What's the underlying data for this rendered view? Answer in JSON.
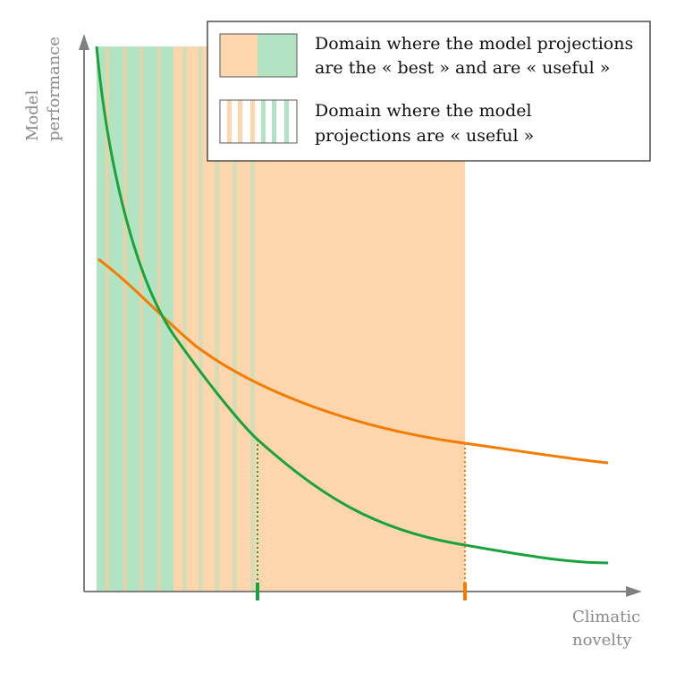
{
  "axes": {
    "y_label_lines": [
      "Model",
      "performance"
    ],
    "x_label_lines": [
      "Climatic",
      "novelty"
    ]
  },
  "legend": {
    "best_useful_lines": [
      "Domain where the model projections",
      "are the « best » and are « useful »"
    ],
    "useful_lines": [
      "Domain where the model",
      "projections are « useful »"
    ]
  },
  "colors": {
    "orange": "#f57c00",
    "orange_fill": "#fdd6ad",
    "green": "#1aa33c",
    "green_fill": "#b2e3c2",
    "axis": "#808080"
  },
  "series": {
    "green_curve": "model-green",
    "orange_curve": "model-orange"
  }
}
